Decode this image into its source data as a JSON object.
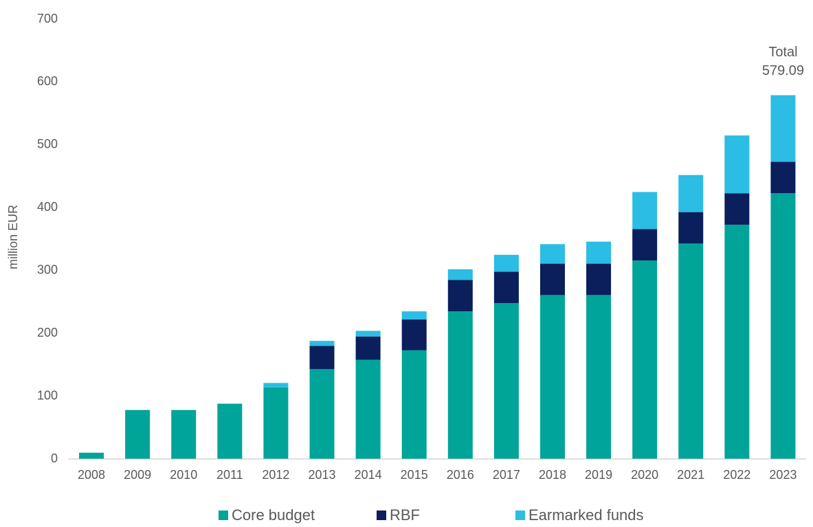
{
  "chart_data": {
    "type": "stacked_bar",
    "y_label": "million EUR",
    "categories": [
      "2008",
      "2009",
      "2010",
      "2011",
      "2012",
      "2013",
      "2014",
      "2015",
      "2016",
      "2017",
      "2018",
      "2019",
      "2020",
      "2021",
      "2022",
      "2023"
    ],
    "series": [
      {
        "name": "Core budget",
        "color": "#00a499",
        "values": [
          10,
          78,
          78,
          88,
          114,
          143,
          158,
          173,
          235,
          248,
          261,
          261,
          316,
          343,
          373,
          423
        ]
      },
      {
        "name": "RBF",
        "color": "#0a1f5c",
        "values": [
          0,
          0,
          0,
          0,
          0,
          37,
          37,
          49,
          50,
          50,
          50,
          50,
          50,
          50,
          50,
          50
        ]
      },
      {
        "name": "Earmarked funds",
        "color": "#2bbde3",
        "values": [
          0,
          0,
          0,
          0,
          7,
          8,
          9,
          13,
          17,
          27,
          31,
          35,
          59,
          59,
          92,
          106.09
        ]
      }
    ],
    "annotation": [
      "Total",
      "579.09"
    ],
    "ylim": [
      0,
      700
    ],
    "yticks": [
      0,
      100,
      200,
      300,
      400,
      500,
      600,
      700
    ],
    "grid": false,
    "legend": "bottom"
  }
}
